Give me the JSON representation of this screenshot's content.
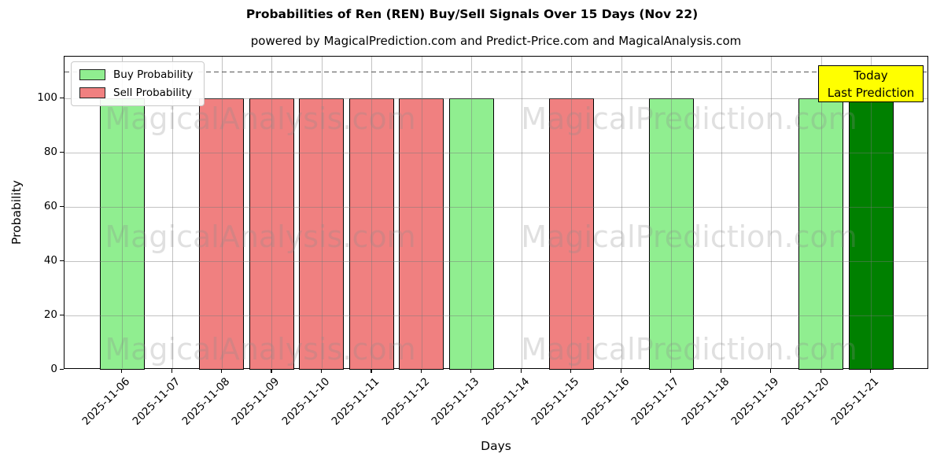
{
  "chart_data": {
    "type": "bar",
    "title": "Probabilities of Ren (REN) Buy/Sell Signals Over 15 Days (Nov 22)",
    "subtitle": "powered by MagicalPrediction.com and Predict-Price.com and MagicalAnalysis.com",
    "xlabel": "Days",
    "ylabel": "Probability",
    "ylim": [
      0,
      115.4
    ],
    "yticks": [
      0,
      20,
      40,
      60,
      80,
      100
    ],
    "dashed_guide_y": 110,
    "grid": true,
    "bar_edge_color": "#000000",
    "categories": [
      "2025-11-06",
      "2025-11-07",
      "2025-11-08",
      "2025-11-09",
      "2025-11-10",
      "2025-11-11",
      "2025-11-12",
      "2025-11-13",
      "2025-11-14",
      "2025-11-15",
      "2025-11-16",
      "2025-11-17",
      "2025-11-18",
      "2025-11-19",
      "2025-11-20",
      "2025-11-21"
    ],
    "series": [
      {
        "name": "Buy Probability",
        "color": "#90EE90",
        "values": [
          100,
          0,
          0,
          0,
          0,
          0,
          0,
          100,
          0,
          0,
          0,
          100,
          0,
          0,
          100,
          0
        ]
      },
      {
        "name": "Sell Probability",
        "color": "#F08080",
        "values": [
          0,
          0,
          100,
          100,
          100,
          100,
          100,
          0,
          0,
          100,
          0,
          0,
          0,
          0,
          0,
          0
        ]
      },
      {
        "name": "Last Prediction",
        "color": "#008000",
        "values": [
          0,
          0,
          0,
          0,
          0,
          0,
          0,
          0,
          0,
          0,
          0,
          0,
          0,
          0,
          0,
          100
        ]
      }
    ],
    "legend": {
      "position": "upper-left",
      "entries": [
        {
          "label": "Buy Probability",
          "color": "#90EE90"
        },
        {
          "label": "Sell Probability",
          "color": "#F08080"
        }
      ]
    },
    "annotation_box": {
      "lines": [
        "Today",
        "Last Prediction"
      ],
      "bg_color": "#FFFF00",
      "border_color": "#000000"
    },
    "watermarks": {
      "left_text": "MagicalAnalysis.com",
      "right_text": "MagicalPrediction.com"
    }
  }
}
